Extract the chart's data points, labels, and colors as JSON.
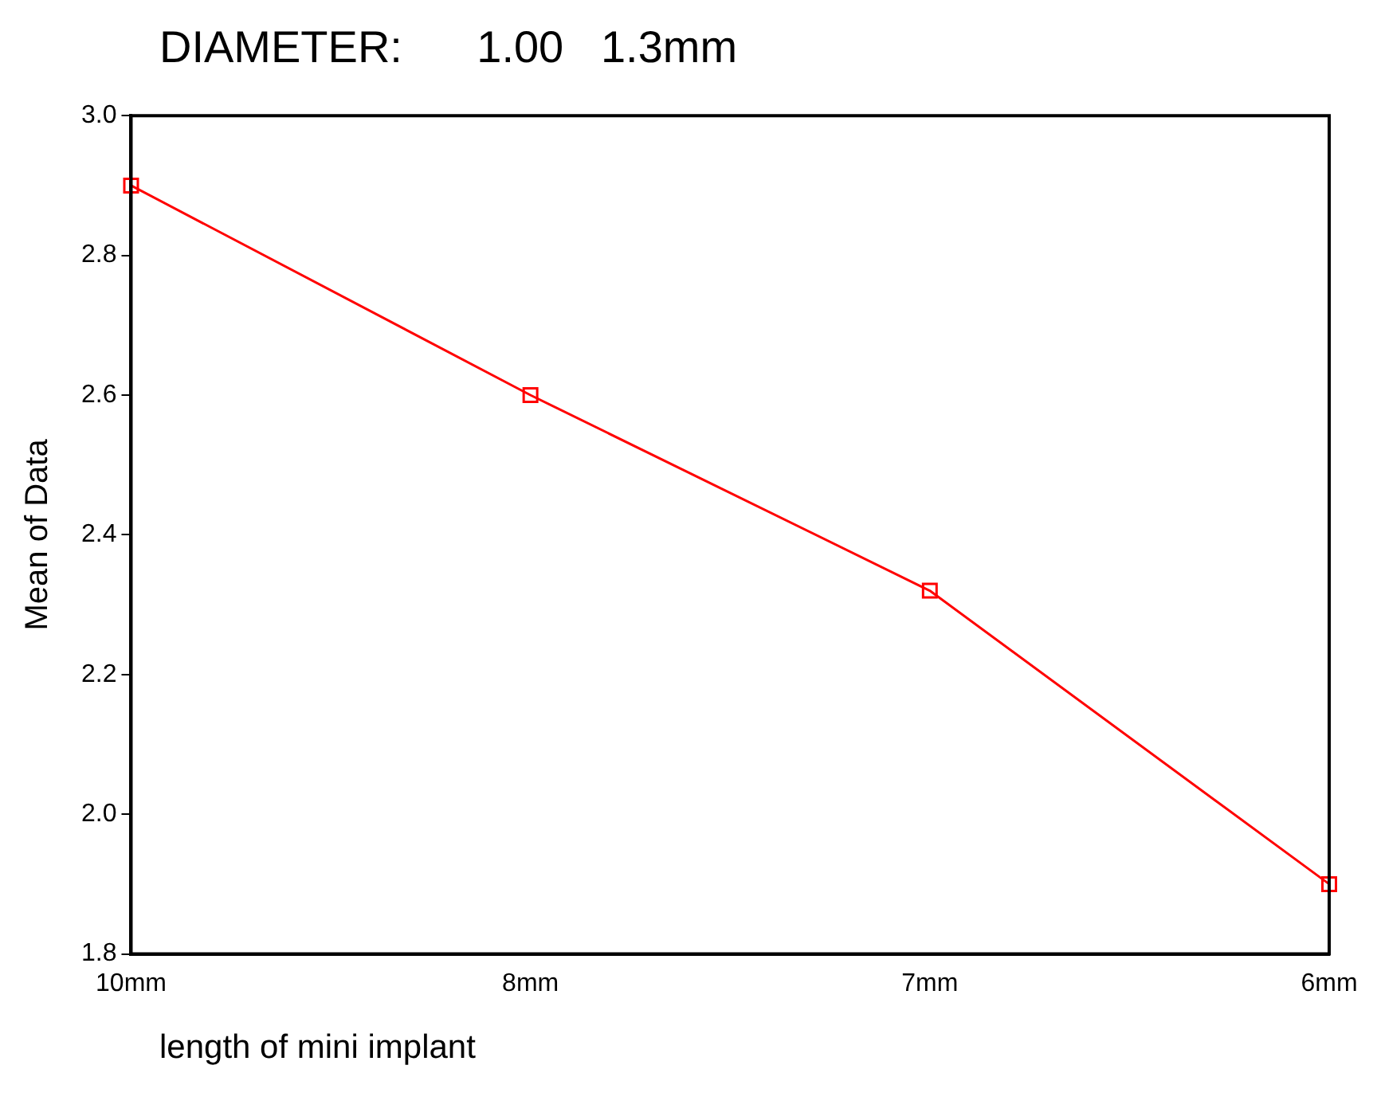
{
  "chart_data": {
    "type": "line",
    "title": "DIAMETER:      1.00   1.3mm",
    "xlabel": "length of mini implant",
    "ylabel": "Mean of Data",
    "categories": [
      "10mm",
      "8mm",
      "7mm",
      "6mm"
    ],
    "series": [
      {
        "color": "#ff0000",
        "values": [
          2.9,
          2.6,
          2.32,
          1.9
        ]
      }
    ],
    "ylim": [
      1.8,
      3.0
    ],
    "yticks": [
      {
        "value": 1.8,
        "label": "1.8"
      },
      {
        "value": 2.0,
        "label": "2.0"
      },
      {
        "value": 2.2,
        "label": "2.2"
      },
      {
        "value": 2.4,
        "label": "2.4"
      },
      {
        "value": 2.6,
        "label": "2.6"
      },
      {
        "value": 2.8,
        "label": "2.8"
      },
      {
        "value": 3.0,
        "label": "3.0"
      }
    ],
    "grid": false,
    "legend": false,
    "marker": "square",
    "line_style": "solid"
  }
}
